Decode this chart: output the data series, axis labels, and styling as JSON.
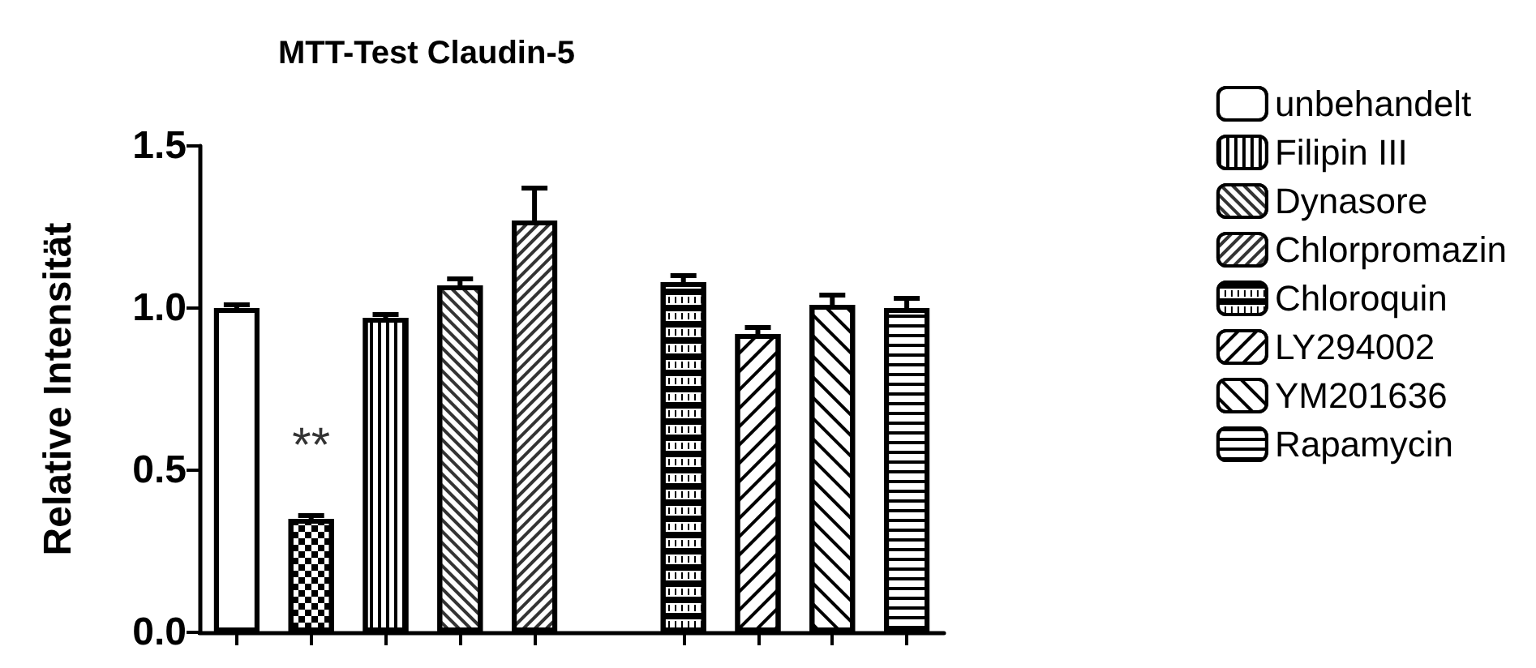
{
  "chart_data": {
    "type": "bar",
    "title": "MTT-Test Claudin-5",
    "ylabel": "Relative Intensität",
    "categories": [
      null,
      null,
      null,
      null,
      null,
      null,
      null,
      null,
      null,
      null
    ],
    "series": [
      {
        "name": "unbehandelt",
        "color": "#ffffff",
        "values": [
          1.0,
          null,
          null,
          null,
          null,
          null,
          null,
          null,
          null,
          null
        ],
        "errors": [
          [
            1.0,
            1.01
          ],
          null,
          null,
          null,
          null,
          null,
          null,
          null,
          null,
          null
        ]
      },
      {
        "color": "#ffffff",
        "values": [
          null,
          0.35,
          null,
          null,
          null,
          null,
          null,
          null,
          null,
          null
        ],
        "errors": [
          null,
          [
            0.35,
            0.36
          ],
          null,
          null,
          null,
          null,
          null,
          null,
          null,
          null
        ]
      },
      {
        "name": "Filipin III",
        "color": "#ffffff",
        "values": [
          null,
          null,
          0.97,
          null,
          null,
          null,
          null,
          null,
          null,
          null
        ],
        "errors": [
          null,
          null,
          [
            0.97,
            0.98
          ],
          null,
          null,
          null,
          null,
          null,
          null,
          null
        ]
      },
      {
        "name": "Dynasore",
        "color": "#ffffff",
        "values": [
          null,
          null,
          null,
          1.07,
          null,
          null,
          null,
          null,
          null,
          null
        ],
        "errors": [
          null,
          null,
          null,
          [
            1.07,
            1.09
          ],
          null,
          null,
          null,
          null,
          null,
          null
        ]
      },
      {
        "name": "Chlorpromazin",
        "color": "#ffffff",
        "values": [
          null,
          null,
          null,
          null,
          1.27,
          null,
          null,
          null,
          null,
          null
        ],
        "errors": [
          null,
          null,
          null,
          null,
          [
            1.27,
            1.37
          ],
          null,
          null,
          null,
          null,
          null
        ]
      },
      {
        "name": "Chloroquin",
        "color": "#ffffff",
        "values": [
          null,
          null,
          null,
          null,
          null,
          null,
          1.08,
          null,
          null,
          null
        ],
        "errors": [
          null,
          null,
          null,
          null,
          null,
          null,
          [
            1.08,
            1.1
          ],
          null,
          null,
          null
        ]
      },
      {
        "name": "LY294002",
        "color": "#ffffff",
        "values": [
          null,
          null,
          null,
          null,
          null,
          null,
          null,
          0.92,
          null,
          null
        ],
        "errors": [
          null,
          null,
          null,
          null,
          null,
          null,
          null,
          [
            0.92,
            0.94
          ],
          null,
          null
        ]
      },
      {
        "name": "YM201636",
        "color": "#ffffff",
        "values": [
          null,
          null,
          null,
          null,
          null,
          null,
          null,
          null,
          1.01,
          null
        ],
        "errors": [
          null,
          null,
          null,
          null,
          null,
          null,
          null,
          null,
          [
            1.01,
            1.04
          ],
          null
        ]
      },
      {
        "name": "Rapamycin",
        "color": "#ffffff",
        "values": [
          null,
          null,
          null,
          null,
          null,
          null,
          null,
          null,
          null,
          1.0
        ],
        "errors": [
          null,
          null,
          null,
          null,
          null,
          null,
          null,
          null,
          null,
          [
            1.0,
            1.03
          ]
        ]
      }
    ],
    "ylim": [
      0,
      1.5
    ],
    "yticks": [
      {
        "value": 0,
        "label": "0.0"
      },
      {
        "value": 0.5,
        "label": "0.5"
      },
      {
        "value": 1,
        "label": "1.0"
      },
      {
        "value": 1.5,
        "label": "1.5"
      }
    ],
    "annotations": [
      "**"
    ],
    "grid": false,
    "legend": "right"
  }
}
